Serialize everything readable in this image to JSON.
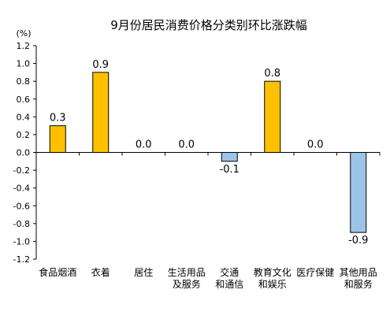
{
  "chart_data": {
    "type": "bar",
    "title": "9月份居民消费价格分类别环比涨跌幅",
    "ylabel": "(%)",
    "xlabel": "",
    "ylim": [
      -1.2,
      1.2
    ],
    "yticks": [
      "1.2",
      "1.0",
      "0.8",
      "0.6",
      "0.4",
      "0.2",
      "0.0",
      "-0.2",
      "-0.4",
      "-0.6",
      "-0.8",
      "-1.0",
      "-1.2"
    ],
    "ytick_values": [
      1.2,
      1.0,
      0.8,
      0.6,
      0.4,
      0.2,
      0.0,
      -0.2,
      -0.4,
      -0.6,
      -0.8,
      -1.0,
      -1.2
    ],
    "grid": false,
    "categories": [
      [
        "食品烟酒"
      ],
      [
        "衣着"
      ],
      [
        "居住"
      ],
      [
        "生活用品",
        "及服务"
      ],
      [
        "交通",
        "和通信"
      ],
      [
        "教育文化",
        "和娱乐"
      ],
      [
        "医疗保健"
      ],
      [
        "其他用品",
        "和服务"
      ]
    ],
    "values": [
      0.3,
      0.9,
      0.0,
      0.0,
      -0.1,
      0.8,
      0.0,
      -0.9
    ],
    "value_labels": [
      "0.3",
      "0.9",
      "0.0",
      "0.0",
      "-0.1",
      "0.8",
      "0.0",
      "-0.9"
    ],
    "colors": {
      "positive": "#FFC000",
      "negative": "#9DC3E6",
      "outline": "#000000",
      "axis": "#000000"
    }
  }
}
